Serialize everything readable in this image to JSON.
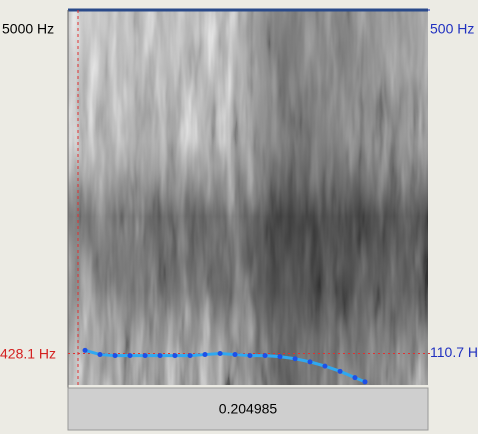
{
  "spectrogram": {
    "top_label": "5000 Hz",
    "cursor_label": "428.1 Hz"
  },
  "pitch": {
    "xlim": [
      0,
      0.204985
    ],
    "ylim": [
      75,
      500
    ],
    "yticks": [
      {
        "value": 500,
        "label": "500 Hz"
      },
      {
        "value": 110.7,
        "label": "110.7 H"
      }
    ],
    "color": "#1e50e6",
    "x": [
      0.0097,
      0.0182,
      0.0268,
      0.0353,
      0.0439,
      0.0524,
      0.0609,
      0.0695,
      0.078,
      0.0866,
      0.0951,
      0.1036,
      0.1122,
      0.1207,
      0.1293,
      0.1378,
      0.1463,
      0.1549,
      0.1634,
      0.1691
    ],
    "values": [
      114.3,
      109.5,
      108.3,
      108.3,
      108.3,
      108.3,
      108.3,
      108.3,
      109.5,
      110.7,
      109.5,
      108.3,
      108.3,
      107.1,
      104.8,
      101.2,
      96.4,
      90.5,
      83.3,
      78.6
    ]
  }
}
